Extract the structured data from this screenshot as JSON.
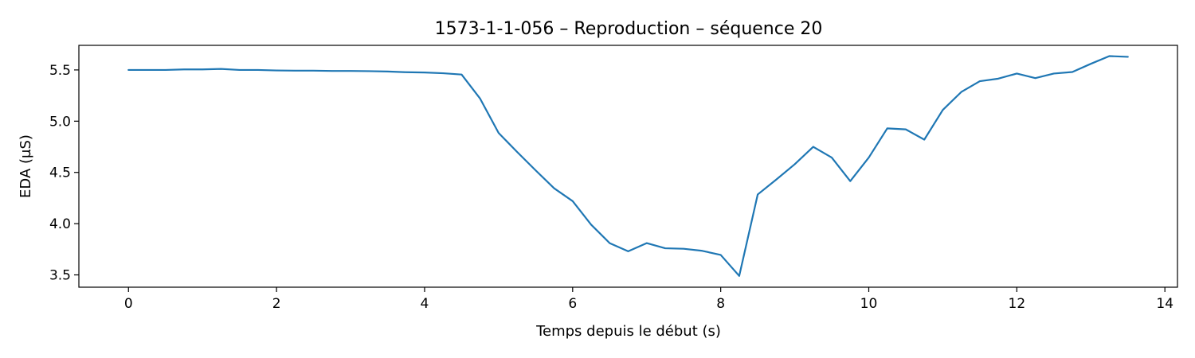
{
  "chart_data": {
    "type": "line",
    "title": "1573-1-1-056 – Reproduction – séquence 20",
    "xlabel": "Temps depuis le début (s)",
    "ylabel": "EDA (µS)",
    "xlim": [
      -0.67,
      14.17
    ],
    "ylim": [
      3.38,
      5.74
    ],
    "grid": false,
    "x_ticks": [
      {
        "value": 0,
        "label": "0"
      },
      {
        "value": 2,
        "label": "2"
      },
      {
        "value": 4,
        "label": "4"
      },
      {
        "value": 6,
        "label": "6"
      },
      {
        "value": 8,
        "label": "8"
      },
      {
        "value": 10,
        "label": "10"
      },
      {
        "value": 12,
        "label": "12"
      },
      {
        "value": 14,
        "label": "14"
      }
    ],
    "y_ticks": [
      {
        "value": 3.5,
        "label": "3.5"
      },
      {
        "value": 4.0,
        "label": "4.0"
      },
      {
        "value": 4.5,
        "label": "4.5"
      },
      {
        "value": 5.0,
        "label": "5.0"
      },
      {
        "value": 5.5,
        "label": "5.5"
      }
    ],
    "series": [
      {
        "color": "#1f77b4",
        "x": [
          0,
          0.25,
          0.5,
          0.75,
          1.0,
          1.25,
          1.5,
          1.75,
          2.0,
          2.25,
          2.5,
          2.75,
          3.0,
          3.25,
          3.5,
          3.75,
          4.0,
          4.25,
          4.5,
          4.75,
          5.0,
          5.25,
          5.5,
          5.75,
          6.0,
          6.25,
          6.5,
          6.75,
          7.0,
          7.25,
          7.5,
          7.75,
          8.0,
          8.25,
          8.5,
          8.75,
          9.0,
          9.25,
          9.5,
          9.75,
          10.0,
          10.25,
          10.5,
          10.75,
          11.0,
          11.25,
          11.5,
          11.75,
          12.0,
          12.25,
          12.5,
          12.75,
          13.0,
          13.25,
          13.5
        ],
        "values": [
          5.5,
          5.5,
          5.5,
          5.505,
          5.505,
          5.51,
          5.5,
          5.5,
          5.495,
          5.493,
          5.493,
          5.49,
          5.49,
          5.488,
          5.485,
          5.478,
          5.475,
          5.468,
          5.455,
          5.22,
          4.885,
          4.7,
          4.52,
          4.345,
          4.22,
          3.99,
          3.81,
          3.73,
          3.81,
          3.76,
          3.755,
          3.735,
          3.695,
          3.49,
          4.285,
          4.43,
          4.58,
          4.75,
          4.645,
          4.415,
          4.645,
          4.93,
          4.92,
          4.82,
          5.11,
          5.285,
          5.39,
          5.415,
          5.465,
          5.42,
          5.465,
          5.48,
          5.56,
          5.635,
          5.628
        ]
      }
    ]
  }
}
